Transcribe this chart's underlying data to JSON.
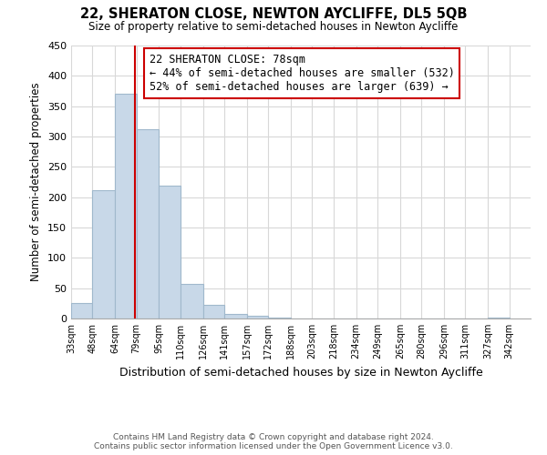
{
  "title": "22, SHERATON CLOSE, NEWTON AYCLIFFE, DL5 5QB",
  "subtitle": "Size of property relative to semi-detached houses in Newton Aycliffe",
  "xlabel": "Distribution of semi-detached houses by size in Newton Aycliffe",
  "ylabel": "Number of semi-detached properties",
  "bin_edges": [
    33,
    48,
    64,
    79,
    95,
    110,
    126,
    141,
    157,
    172,
    188,
    203,
    218,
    234,
    249,
    265,
    280,
    296,
    311,
    327,
    342
  ],
  "bar_heights": [
    25,
    212,
    370,
    312,
    219,
    57,
    22,
    8,
    5,
    1,
    0,
    0,
    0,
    0,
    0,
    0,
    0,
    0,
    0,
    1
  ],
  "bar_color": "#c8d8e8",
  "bar_edgecolor": "#a0b8cc",
  "property_size": 78,
  "property_line_color": "#cc0000",
  "annotation_title": "22 SHERATON CLOSE: 78sqm",
  "annotation_line1": "← 44% of semi-detached houses are smaller (532)",
  "annotation_line2": "52% of semi-detached houses are larger (639) →",
  "annotation_box_edgecolor": "#cc0000",
  "annotation_box_facecolor": "#ffffff",
  "ylim": [
    0,
    450
  ],
  "yticks": [
    0,
    50,
    100,
    150,
    200,
    250,
    300,
    350,
    400,
    450
  ],
  "footer_line1": "Contains HM Land Registry data © Crown copyright and database right 2024.",
  "footer_line2": "Contains public sector information licensed under the Open Government Licence v3.0.",
  "background_color": "#ffffff",
  "grid_color": "#d8d8d8"
}
